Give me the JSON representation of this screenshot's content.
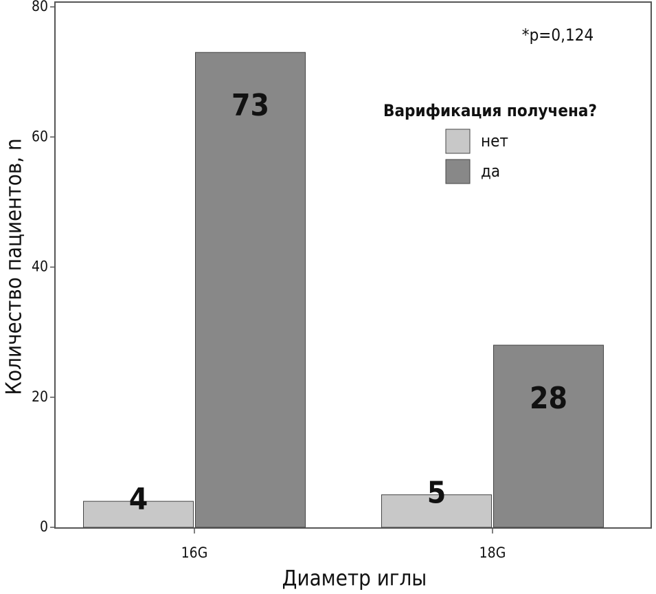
{
  "chart_data": {
    "type": "bar",
    "x_label": "Диаметр иглы",
    "y_label": "Количество пациентов, n",
    "annotation": "*p=0,124",
    "legend_title": "Варификация получена?",
    "categories": [
      "16G",
      "18G"
    ],
    "series": [
      {
        "name": "нет",
        "color": "#c8c8c8",
        "values": [
          4,
          5
        ]
      },
      {
        "name": "да",
        "color": "#888888",
        "values": [
          73,
          28
        ]
      }
    ],
    "ylim": [
      0,
      80
    ],
    "yticks": [
      0,
      20,
      40,
      60,
      80
    ],
    "grid": false,
    "legend": "upper right"
  }
}
